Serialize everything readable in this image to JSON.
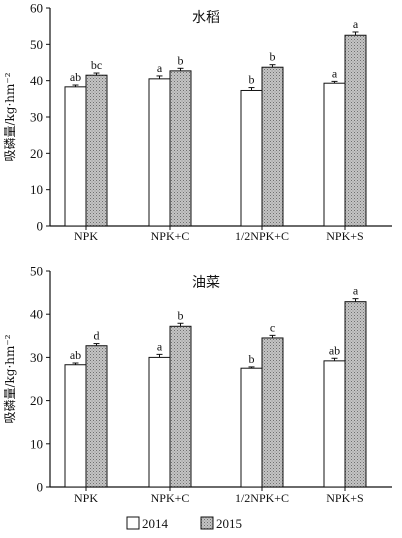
{
  "colors": {
    "series_2014": "#ffffff",
    "series_2015": "#b5b5b5",
    "axis": "#111111"
  },
  "chart_data": [
    {
      "type": "bar",
      "title": "水稻",
      "ylabel": "吸磷量/kg·hm⁻²",
      "ylim": [
        0,
        60
      ],
      "yticks": [
        0,
        10,
        20,
        30,
        40,
        50,
        60
      ],
      "categories": [
        "NPK",
        "NPK+C",
        "1/2NPK+C",
        "NPK+S"
      ],
      "series": [
        {
          "name": "2014",
          "values": [
            38.3,
            40.5,
            37.3,
            39.3
          ],
          "errors": [
            0.5,
            0.8,
            0.8,
            0.5
          ],
          "labels": [
            "ab",
            "a",
            "b",
            "a"
          ]
        },
        {
          "name": "2015",
          "values": [
            41.5,
            42.7,
            43.7,
            52.5
          ],
          "errors": [
            0.6,
            0.7,
            0.7,
            0.9
          ],
          "labels": [
            "bc",
            "b",
            "b",
            "a"
          ]
        }
      ]
    },
    {
      "type": "bar",
      "title": "油菜",
      "ylabel": "吸磷量/kg·hm⁻²",
      "ylim": [
        0,
        50
      ],
      "yticks": [
        0,
        10,
        20,
        30,
        40,
        50
      ],
      "categories": [
        "NPK",
        "NPK+C",
        "1/2NPK+C",
        "NPK+S"
      ],
      "series": [
        {
          "name": "2014",
          "values": [
            28.3,
            30.0,
            27.5,
            29.2
          ],
          "errors": [
            0.4,
            0.7,
            0.3,
            0.6
          ],
          "labels": [
            "ab",
            "a",
            "b",
            "ab"
          ]
        },
        {
          "name": "2015",
          "values": [
            32.7,
            37.2,
            34.5,
            42.9
          ],
          "errors": [
            0.5,
            0.7,
            0.6,
            0.7
          ],
          "labels": [
            "d",
            "b",
            "c",
            "a"
          ]
        }
      ]
    }
  ],
  "legend": [
    {
      "label": "2014"
    },
    {
      "label": "2015"
    }
  ]
}
